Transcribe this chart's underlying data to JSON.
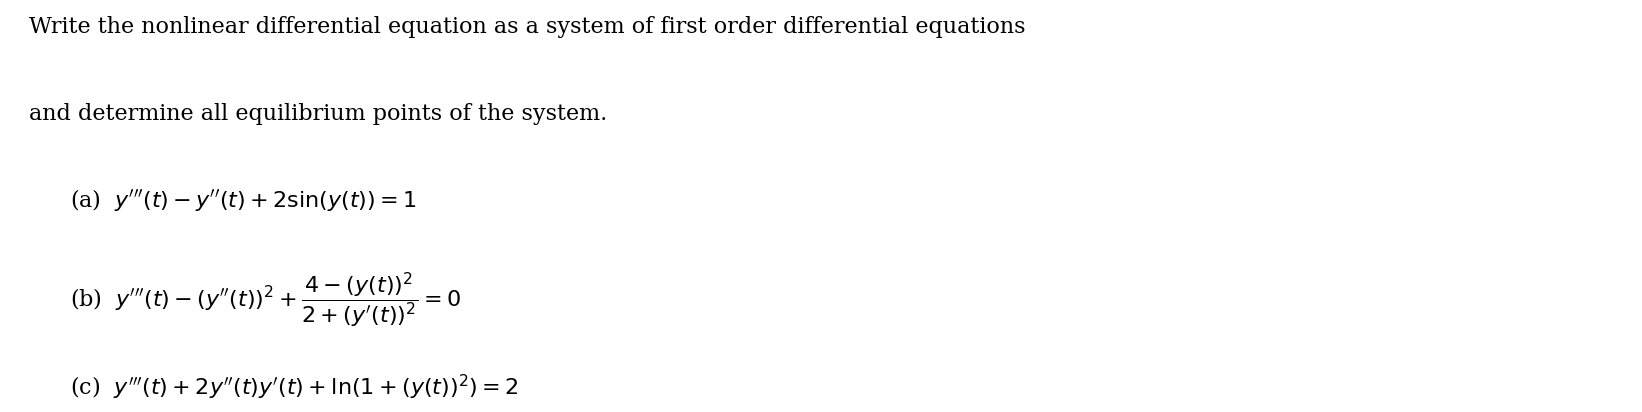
{
  "figsize": [
    16.42,
    4.12
  ],
  "dpi": 100,
  "background_color": "#ffffff",
  "text_color": "#000000",
  "intro_line1": "Write the nonlinear differential equation as a system of first order differential equations",
  "intro_line2": "and determine all equilibrium points of the system.",
  "label_a": "(a)",
  "label_b": "(b)",
  "label_c": "(c)",
  "intro_fontsize": 16,
  "eq_fontsize": 16
}
